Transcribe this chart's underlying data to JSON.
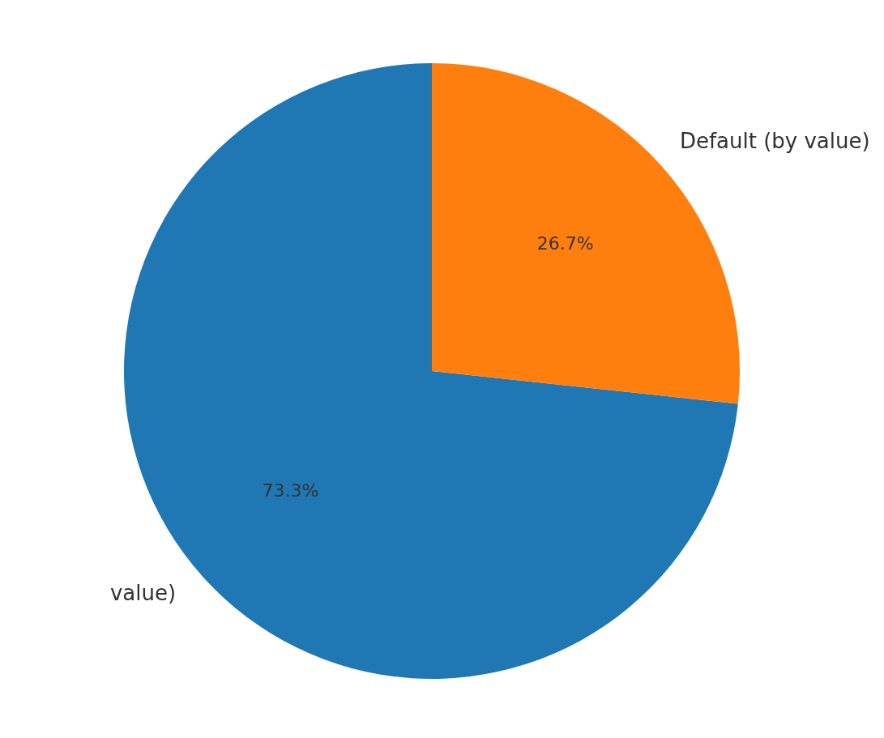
{
  "chart_data": {
    "type": "pie",
    "categories": [
      "value)",
      "Default (by value)"
    ],
    "values": [
      73.3,
      26.7
    ],
    "colors": [
      "#1f77b4",
      "#ff7f0e"
    ],
    "value_labels": [
      "73.3%",
      "26.7%"
    ]
  }
}
